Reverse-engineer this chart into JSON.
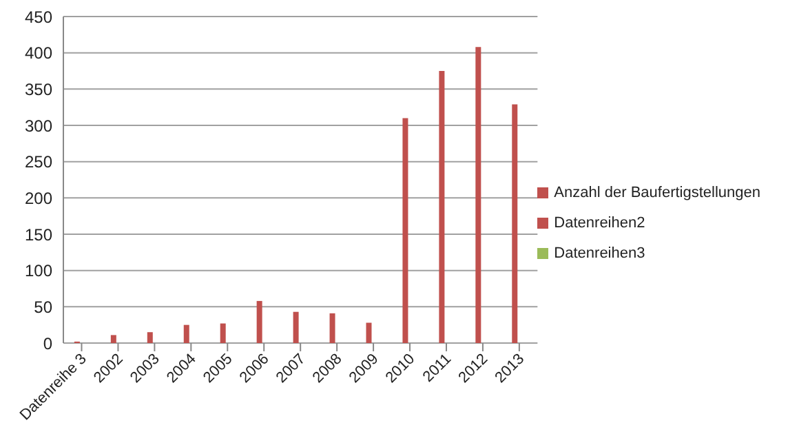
{
  "chart_data": {
    "type": "bar",
    "categories": [
      "Datenreihe 3",
      "2002",
      "2003",
      "2004",
      "2005",
      "2006",
      "2007",
      "2008",
      "2009",
      "2010",
      "2011",
      "2012",
      "2013"
    ],
    "series": [
      {
        "name": "Anzahl der Baufertigstellungen",
        "color": "#c0504d",
        "values": [
          2,
          11,
          15,
          25,
          27,
          58,
          43,
          41,
          28,
          310,
          375,
          408,
          329
        ]
      },
      {
        "name": "Datenreihen2",
        "color": "#c0504d",
        "values": [
          null,
          null,
          null,
          null,
          null,
          null,
          null,
          null,
          null,
          null,
          null,
          null,
          null
        ]
      },
      {
        "name": "Datenreihen3",
        "color": "#9bbb59",
        "values": [
          null,
          null,
          null,
          null,
          null,
          null,
          null,
          null,
          null,
          null,
          null,
          null,
          null
        ]
      }
    ],
    "ylim": [
      0,
      450
    ],
    "yticks": [
      0,
      50,
      100,
      150,
      200,
      250,
      300,
      350,
      400,
      450
    ],
    "grid": "y",
    "legend": "right"
  }
}
